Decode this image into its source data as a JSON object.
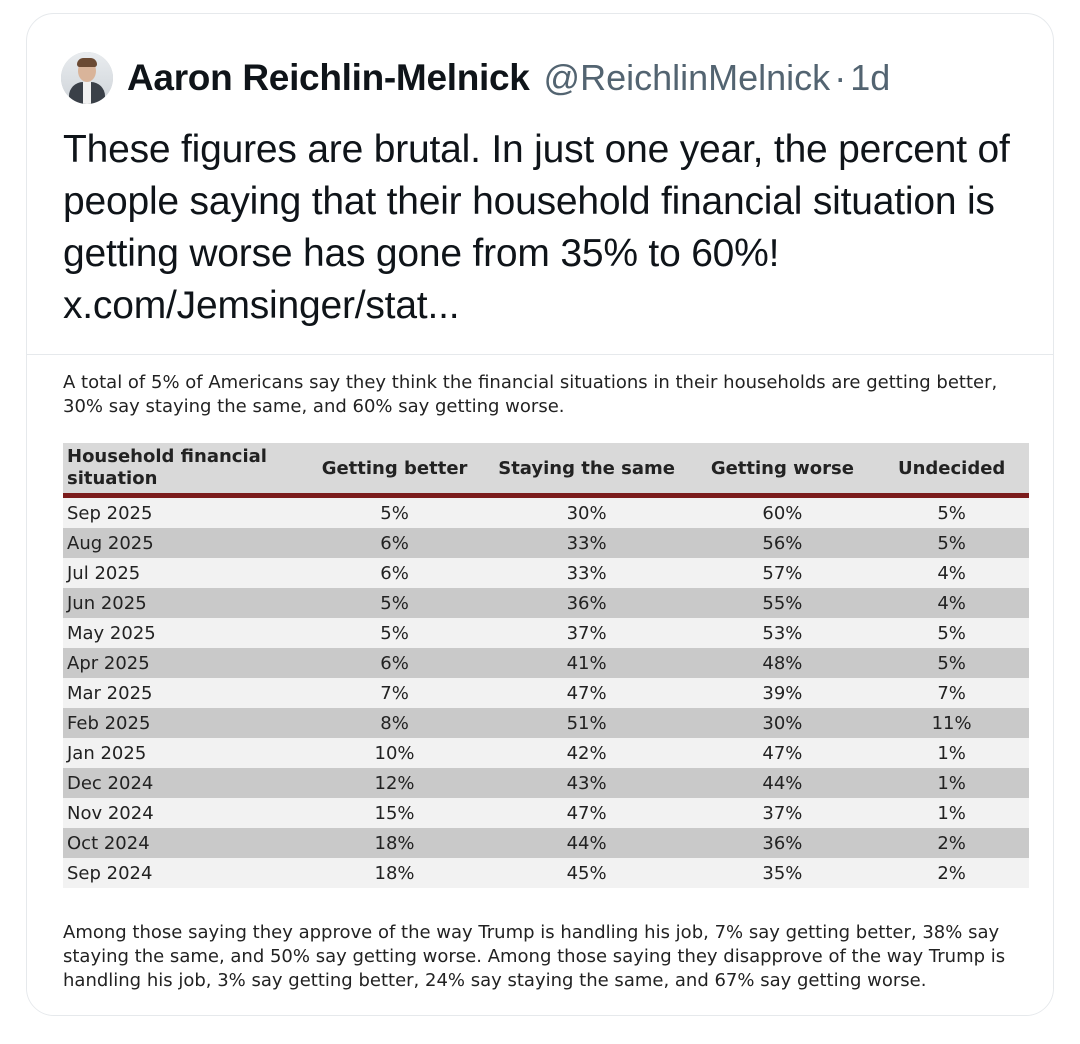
{
  "tweet": {
    "author_name": "Aaron Reichlin-Melnick",
    "handle": "@ReichlinMelnick",
    "separator": "·",
    "time": "1d",
    "text": "These figures are brutal. In just one year, the percent of people saying that their household financial situation is getting worse has gone from 35% to 60%! x.com/Jemsinger/stat..."
  },
  "attachment": {
    "intro": "A total of 5% of Americans say they think the financial situations in their households are getting better, 30% say staying the same, and 60% say getting worse.",
    "table": {
      "headers": [
        "Household financial situation",
        "Getting better",
        "Staying the same",
        "Getting worse",
        "Undecided"
      ],
      "rows": [
        [
          "Sep 2025",
          "5%",
          "30%",
          "60%",
          "5%"
        ],
        [
          "Aug 2025",
          "6%",
          "33%",
          "56%",
          "5%"
        ],
        [
          "Jul 2025",
          "6%",
          "33%",
          "57%",
          "4%"
        ],
        [
          "Jun 2025",
          "5%",
          "36%",
          "55%",
          "4%"
        ],
        [
          "May 2025",
          "5%",
          "37%",
          "53%",
          "5%"
        ],
        [
          "Apr 2025",
          "6%",
          "41%",
          "48%",
          "5%"
        ],
        [
          "Mar 2025",
          "7%",
          "47%",
          "39%",
          "7%"
        ],
        [
          "Feb 2025",
          "8%",
          "51%",
          "30%",
          "11%"
        ],
        [
          "Jan 2025",
          "10%",
          "42%",
          "47%",
          "1%"
        ],
        [
          "Dec 2024",
          "12%",
          "43%",
          "44%",
          "1%"
        ],
        [
          "Nov 2024",
          "15%",
          "47%",
          "37%",
          "1%"
        ],
        [
          "Oct 2024",
          "18%",
          "44%",
          "36%",
          "2%"
        ],
        [
          "Sep 2024",
          "18%",
          "45%",
          "35%",
          "2%"
        ]
      ]
    },
    "footnote": "Among those saying they approve of the way Trump is handling his job, 7% say getting better, 38% say staying the same, and 50% say getting worse. Among those saying they disapprove of the way Trump is handling his job, 3% say getting better, 24% say staying the same, and 67% say getting worse."
  },
  "colors": {
    "header_rule": "#7b1c1c",
    "row_light": "#f2f2f2",
    "row_dark": "#c9c9c9",
    "handle_gray": "#536471"
  }
}
